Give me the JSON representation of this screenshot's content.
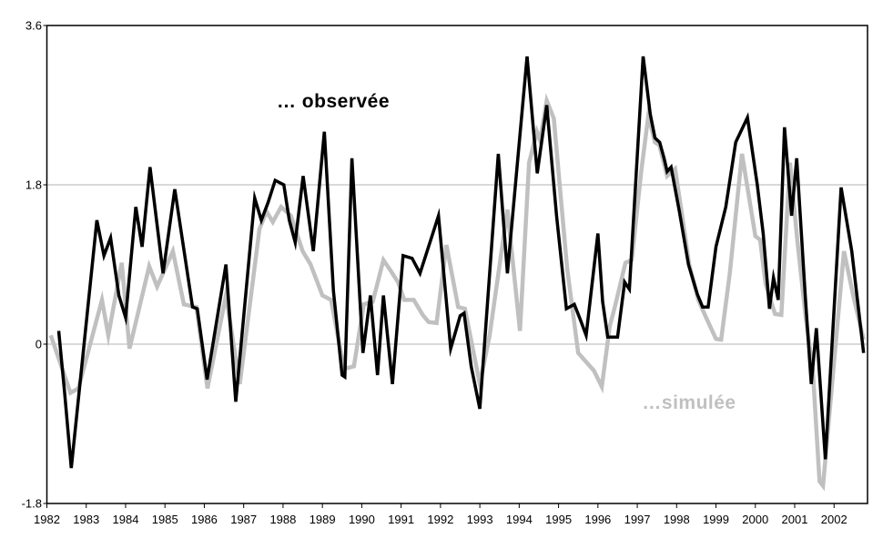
{
  "page": {
    "background": "#ffffff"
  },
  "colors": {
    "observed_series": "#000000",
    "simulated_series": "#c0c0c0",
    "gridline": "#b3b3b3",
    "axis": "#000000",
    "background": "#ffffff"
  },
  "chart_data": {
    "type": "line",
    "title": "",
    "xlabel": "",
    "ylabel": "",
    "xlim": [
      1982,
      2002.85
    ],
    "ylim": [
      -1.8,
      3.6
    ],
    "grid": "horizontal",
    "plot_border": true,
    "legend_position": "inline-annotations",
    "x_tick_labels": [
      "1982",
      "1983",
      "1984",
      "1985",
      "1986",
      "1987",
      "1988",
      "1989",
      "1990",
      "1991",
      "1992",
      "1993",
      "1994",
      "1995",
      "1996",
      "1997",
      "1998",
      "1999",
      "2000",
      "2001",
      "2002"
    ],
    "y_ticks": [
      {
        "value": 3.6,
        "label": "3.6"
      },
      {
        "value": 1.8,
        "label": "1.8"
      },
      {
        "value": 0,
        "label": "0"
      },
      {
        "value": -1.8,
        "label": "-1.8"
      }
    ],
    "y_gridlines": [
      1.8,
      0
    ],
    "annotations": [
      {
        "id": "observed-label",
        "text": "… observée",
        "x": 1989.27,
        "y": 2.74,
        "color": "#000000"
      },
      {
        "id": "simulated-label",
        "text": "…simulée",
        "x": 1998.3,
        "y": -0.67,
        "color": "#c0c0c0"
      }
    ],
    "series": [
      {
        "name": "…simulée",
        "key": "simulated",
        "color": "#c0c0c0",
        "stroke_width": 4.5,
        "points": [
          [
            1982.1,
            0.1
          ],
          [
            1982.6,
            -0.55
          ],
          [
            1982.8,
            -0.5
          ],
          [
            1983.4,
            0.5
          ],
          [
            1983.56,
            0.1
          ],
          [
            1983.9,
            0.92
          ],
          [
            1984.1,
            -0.05
          ],
          [
            1984.6,
            0.88
          ],
          [
            1984.8,
            0.65
          ],
          [
            1985.2,
            1.05
          ],
          [
            1985.48,
            0.45
          ],
          [
            1985.8,
            0.42
          ],
          [
            1986.08,
            -0.5
          ],
          [
            1986.55,
            0.55
          ],
          [
            1986.9,
            -0.45
          ],
          [
            1987.4,
            1.3
          ],
          [
            1987.58,
            1.5
          ],
          [
            1987.74,
            1.38
          ],
          [
            1987.95,
            1.55
          ],
          [
            1988.2,
            1.45
          ],
          [
            1988.5,
            1.05
          ],
          [
            1988.7,
            0.9
          ],
          [
            1989.0,
            0.55
          ],
          [
            1989.22,
            0.5
          ],
          [
            1989.55,
            -0.28
          ],
          [
            1989.8,
            -0.25
          ],
          [
            1990.05,
            0.45
          ],
          [
            1990.28,
            0.48
          ],
          [
            1990.55,
            0.95
          ],
          [
            1990.75,
            0.82
          ],
          [
            1990.92,
            0.7
          ],
          [
            1991.08,
            0.5
          ],
          [
            1991.32,
            0.5
          ],
          [
            1991.55,
            0.33
          ],
          [
            1991.7,
            0.25
          ],
          [
            1991.9,
            0.24
          ],
          [
            1992.15,
            1.12
          ],
          [
            1992.45,
            0.42
          ],
          [
            1992.62,
            0.4
          ],
          [
            1993.0,
            -0.45
          ],
          [
            1993.25,
            0.1
          ],
          [
            1993.7,
            1.52
          ],
          [
            1994.02,
            0.15
          ],
          [
            1994.25,
            2.05
          ],
          [
            1994.45,
            2.4
          ],
          [
            1994.53,
            2.3
          ],
          [
            1994.7,
            2.75
          ],
          [
            1994.88,
            2.55
          ],
          [
            1995.05,
            1.7
          ],
          [
            1995.22,
            0.85
          ],
          [
            1995.5,
            -0.1
          ],
          [
            1995.9,
            -0.3
          ],
          [
            1996.1,
            -0.48
          ],
          [
            1996.3,
            0.2
          ],
          [
            1996.43,
            0.42
          ],
          [
            1996.7,
            0.92
          ],
          [
            1996.86,
            0.95
          ],
          [
            1997.1,
            1.95
          ],
          [
            1997.28,
            2.58
          ],
          [
            1997.45,
            2.28
          ],
          [
            1997.56,
            2.25
          ],
          [
            1997.76,
            1.9
          ],
          [
            1997.96,
            1.98
          ],
          [
            1998.15,
            1.42
          ],
          [
            1998.32,
            0.9
          ],
          [
            1998.55,
            0.5
          ],
          [
            1998.75,
            0.3
          ],
          [
            1999.0,
            0.06
          ],
          [
            1999.13,
            0.05
          ],
          [
            1999.35,
            0.8
          ],
          [
            1999.66,
            2.15
          ],
          [
            2000.0,
            1.22
          ],
          [
            2000.12,
            1.18
          ],
          [
            2000.26,
            0.68
          ],
          [
            2000.5,
            0.34
          ],
          [
            2000.66,
            0.33
          ],
          [
            2000.88,
            2.05
          ],
          [
            2001.06,
            1.2
          ],
          [
            2001.28,
            0.3
          ],
          [
            2001.46,
            -0.3
          ],
          [
            2001.63,
            -1.55
          ],
          [
            2001.72,
            -1.6
          ],
          [
            2002.25,
            1.05
          ],
          [
            2002.5,
            0.52
          ],
          [
            2002.75,
            0.05
          ]
        ]
      },
      {
        "name": "… observée",
        "key": "observed",
        "color": "#000000",
        "stroke_width": 3.5,
        "points": [
          [
            1982.3,
            0.15
          ],
          [
            1982.45,
            -0.55
          ],
          [
            1982.62,
            -1.4
          ],
          [
            1983.27,
            1.4
          ],
          [
            1983.45,
            1.0
          ],
          [
            1983.62,
            1.2
          ],
          [
            1983.83,
            0.55
          ],
          [
            1984.0,
            0.3
          ],
          [
            1984.26,
            1.55
          ],
          [
            1984.42,
            1.1
          ],
          [
            1984.62,
            2.0
          ],
          [
            1984.95,
            0.8
          ],
          [
            1985.25,
            1.75
          ],
          [
            1985.7,
            0.42
          ],
          [
            1985.82,
            0.4
          ],
          [
            1986.07,
            -0.4
          ],
          [
            1986.55,
            0.9
          ],
          [
            1986.8,
            -0.65
          ],
          [
            1987.28,
            1.65
          ],
          [
            1987.45,
            1.4
          ],
          [
            1987.62,
            1.6
          ],
          [
            1987.8,
            1.85
          ],
          [
            1988.02,
            1.8
          ],
          [
            1988.16,
            1.4
          ],
          [
            1988.31,
            1.15
          ],
          [
            1988.51,
            1.9
          ],
          [
            1988.77,
            1.05
          ],
          [
            1989.05,
            2.4
          ],
          [
            1989.28,
            0.6
          ],
          [
            1989.5,
            -0.35
          ],
          [
            1989.57,
            -0.37
          ],
          [
            1989.75,
            2.1
          ],
          [
            1990.03,
            -0.1
          ],
          [
            1990.22,
            0.55
          ],
          [
            1990.4,
            -0.35
          ],
          [
            1990.55,
            0.55
          ],
          [
            1990.78,
            -0.45
          ],
          [
            1991.05,
            1.0
          ],
          [
            1991.28,
            0.97
          ],
          [
            1991.48,
            0.8
          ],
          [
            1991.95,
            1.45
          ],
          [
            1992.26,
            -0.05
          ],
          [
            1992.5,
            0.32
          ],
          [
            1992.6,
            0.35
          ],
          [
            1992.78,
            -0.25
          ],
          [
            1993.0,
            -0.73
          ],
          [
            1993.47,
            2.15
          ],
          [
            1993.7,
            0.8
          ],
          [
            1994.2,
            3.25
          ],
          [
            1994.46,
            1.93
          ],
          [
            1994.7,
            2.7
          ],
          [
            1994.95,
            1.45
          ],
          [
            1995.2,
            0.4
          ],
          [
            1995.4,
            0.45
          ],
          [
            1995.55,
            0.28
          ],
          [
            1995.7,
            0.1
          ],
          [
            1996.0,
            1.25
          ],
          [
            1996.12,
            0.48
          ],
          [
            1996.25,
            0.08
          ],
          [
            1996.5,
            0.08
          ],
          [
            1996.68,
            0.7
          ],
          [
            1996.8,
            0.62
          ],
          [
            1997.15,
            3.25
          ],
          [
            1997.33,
            2.6
          ],
          [
            1997.45,
            2.33
          ],
          [
            1997.57,
            2.28
          ],
          [
            1997.68,
            2.1
          ],
          [
            1997.76,
            1.95
          ],
          [
            1997.86,
            2.0
          ],
          [
            1998.07,
            1.5
          ],
          [
            1998.3,
            0.9
          ],
          [
            1998.53,
            0.56
          ],
          [
            1998.66,
            0.42
          ],
          [
            1998.8,
            0.42
          ],
          [
            1999.0,
            1.1
          ],
          [
            1999.25,
            1.55
          ],
          [
            1999.5,
            2.28
          ],
          [
            1999.8,
            2.56
          ],
          [
            2000.05,
            1.8
          ],
          [
            2000.2,
            1.25
          ],
          [
            2000.36,
            0.4
          ],
          [
            2000.46,
            0.75
          ],
          [
            2000.58,
            0.5
          ],
          [
            2000.74,
            2.45
          ],
          [
            2000.92,
            1.45
          ],
          [
            2001.05,
            2.1
          ],
          [
            2001.27,
            0.53
          ],
          [
            2001.42,
            -0.45
          ],
          [
            2001.55,
            0.18
          ],
          [
            2001.78,
            -1.3
          ],
          [
            2002.18,
            1.77
          ],
          [
            2002.45,
            1.05
          ],
          [
            2002.75,
            -0.1
          ]
        ]
      }
    ]
  }
}
